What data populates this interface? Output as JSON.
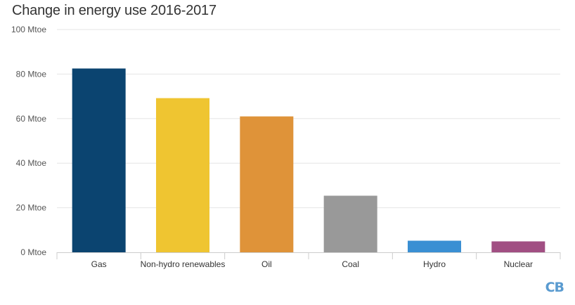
{
  "chart_data": {
    "type": "bar",
    "title": "Change in energy use 2016-2017",
    "xlabel": "",
    "ylabel": "",
    "unit": "Mtoe",
    "ylim": [
      0,
      100
    ],
    "yticks": [
      0,
      20,
      40,
      60,
      80,
      100
    ],
    "ytick_labels": [
      "0 Mtoe",
      "20 Mtoe",
      "40 Mtoe",
      "60 Mtoe",
      "80 Mtoe",
      "100 Mtoe"
    ],
    "categories": [
      "Gas",
      "Non-hydro renewables",
      "Oil",
      "Coal",
      "Hydro",
      "Nuclear"
    ],
    "values": [
      82.5,
      69.2,
      61.0,
      25.4,
      5.2,
      4.9
    ],
    "colors": [
      "#0b4470",
      "#efc531",
      "#df9339",
      "#999999",
      "#3a8fd3",
      "#a14f83"
    ],
    "grid": true,
    "legend": "none"
  },
  "logo": {
    "text": "CB"
  }
}
